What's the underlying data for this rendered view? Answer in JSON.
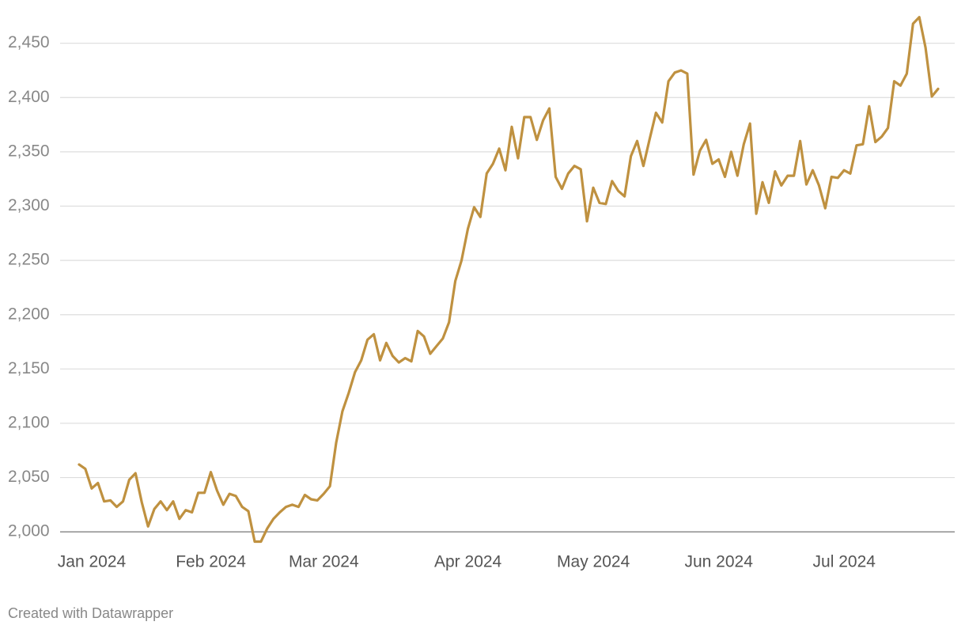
{
  "chart_data": {
    "type": "line",
    "credit": "Created with Datawrapper",
    "categories": [
      "Jan 2024",
      null,
      null,
      null,
      null,
      null,
      null,
      null,
      null,
      null,
      null,
      null,
      null,
      null,
      null,
      null,
      null,
      null,
      null,
      "Feb 2024",
      null,
      null,
      null,
      null,
      null,
      null,
      null,
      null,
      null,
      null,
      null,
      null,
      null,
      null,
      null,
      null,
      null,
      "Mar 2024",
      null,
      null,
      null,
      null,
      null,
      null,
      null,
      null,
      null,
      null,
      null,
      null,
      null,
      null,
      null,
      null,
      null,
      null,
      null,
      null,
      null,
      null,
      "Apr 2024",
      null,
      null,
      null,
      null,
      null,
      null,
      null,
      null,
      null,
      null,
      null,
      null,
      null,
      null,
      null,
      null,
      null,
      null,
      null,
      "May 2024",
      null,
      null,
      null,
      null,
      null,
      null,
      null,
      null,
      null,
      null,
      null,
      null,
      null,
      null,
      null,
      null,
      null,
      null,
      null,
      "Jun 2024",
      null,
      null,
      null,
      null,
      null,
      null,
      null,
      null,
      null,
      null,
      null,
      null,
      null,
      null,
      null,
      null,
      null,
      null,
      null,
      "Jul 2024",
      null,
      null,
      null,
      null,
      null,
      null,
      null,
      null,
      null,
      null,
      null,
      null,
      null,
      null,
      null,
      null,
      null
    ],
    "values": [
      2062,
      2058,
      2040,
      2045,
      2028,
      2029,
      2023,
      2028,
      2048,
      2054,
      2027,
      2005,
      2021,
      2028,
      2020,
      2028,
      2012,
      2020,
      2018,
      2036,
      2036,
      2055,
      2038,
      2025,
      2035,
      2033,
      2023,
      2019,
      1991,
      1991,
      2003,
      2012,
      2018,
      2023,
      2025,
      2023,
      2034,
      2030,
      2029,
      2035,
      2042,
      2082,
      2111,
      2128,
      2147,
      2158,
      2177,
      2182,
      2158,
      2174,
      2162,
      2156,
      2160,
      2157,
      2185,
      2180,
      2164,
      2171,
      2178,
      2193,
      2231,
      2250,
      2279,
      2299,
      2290,
      2330,
      2339,
      2353,
      2333,
      2373,
      2344,
      2382,
      2382,
      2361,
      2379,
      2390,
      2327,
      2316,
      2330,
      2337,
      2334,
      2286,
      2317,
      2303,
      2302,
      2323,
      2314,
      2309,
      2346,
      2360,
      2337,
      2362,
      2386,
      2377,
      2415,
      2423,
      2425,
      2422,
      2329,
      2351,
      2361,
      2339,
      2343,
      2327,
      2350,
      2328,
      2357,
      2376,
      2293,
      2322,
      2303,
      2332,
      2319,
      2328,
      2328,
      2360,
      2320,
      2333,
      2319,
      2298,
      2327,
      2326,
      2333,
      2330,
      2356,
      2357,
      2392,
      2359,
      2364,
      2372,
      2415,
      2411,
      2422,
      2468,
      2474,
      2446,
      2401,
      2408
    ],
    "color": "#bf9140",
    "ylim": [
      1987,
      2476
    ],
    "yticks": [
      {
        "value": 2000,
        "label": "2,000"
      },
      {
        "value": 2050,
        "label": "2,050"
      },
      {
        "value": 2100,
        "label": "2,100"
      },
      {
        "value": 2150,
        "label": "2,150"
      },
      {
        "value": 2200,
        "label": "2,200"
      },
      {
        "value": 2250,
        "label": "2,250"
      },
      {
        "value": 2300,
        "label": "2,300"
      },
      {
        "value": 2350,
        "label": "2,350"
      },
      {
        "value": 2400,
        "label": "2,400"
      },
      {
        "value": 2450,
        "label": "2,450"
      }
    ],
    "grid": true
  }
}
